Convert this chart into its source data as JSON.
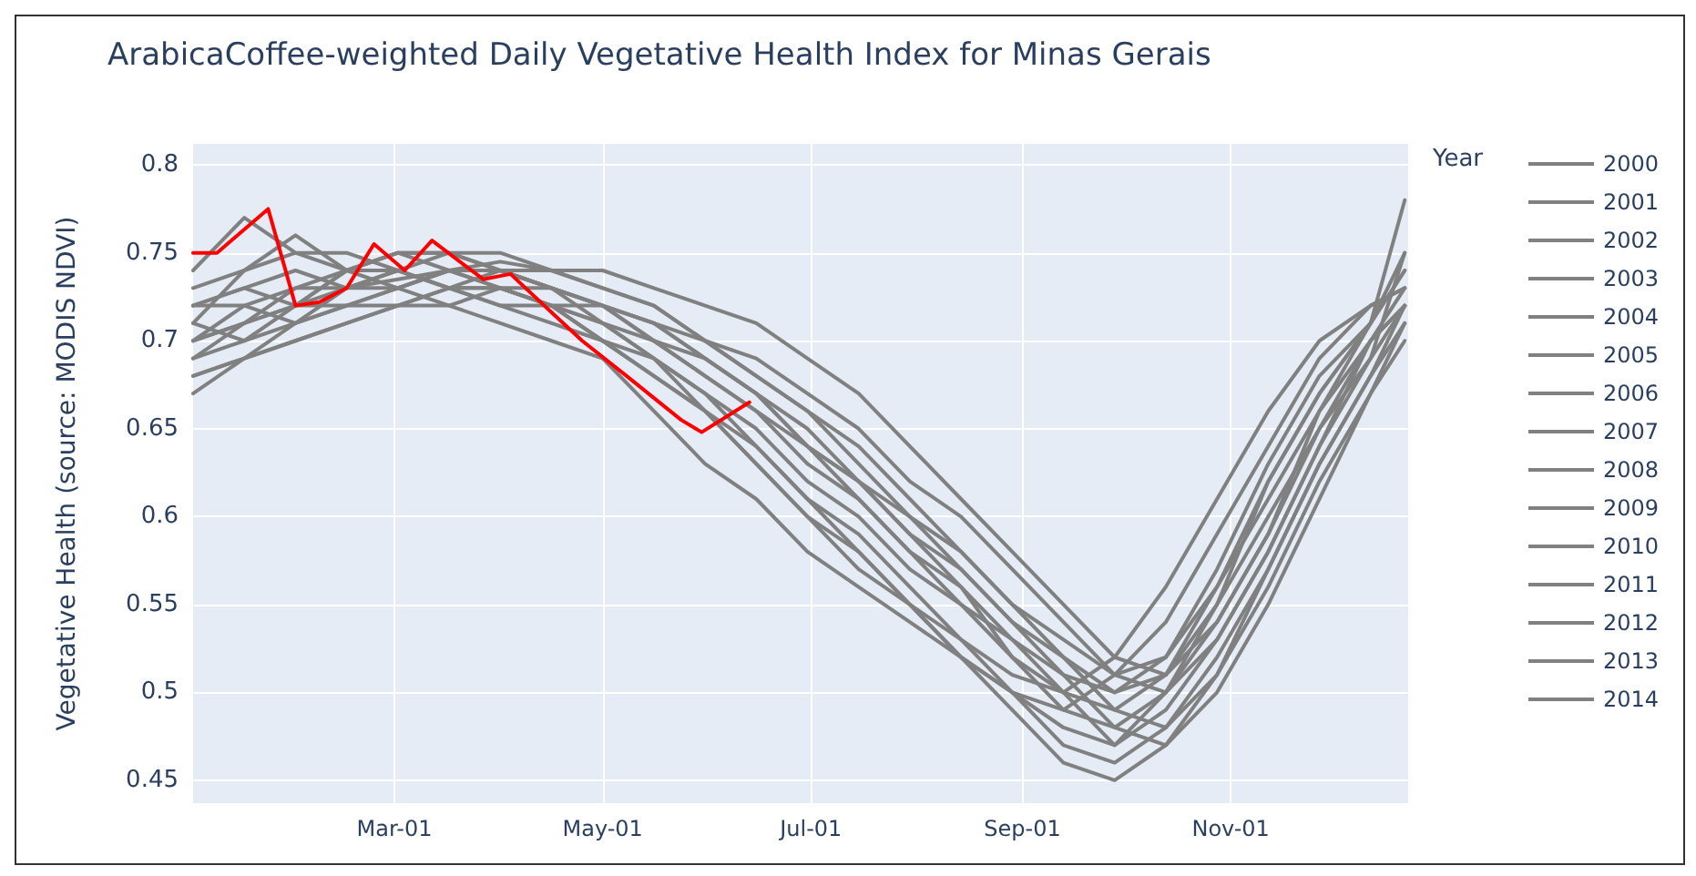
{
  "chart_data": {
    "type": "line",
    "title": "ArabicaCoffee-weighted Daily Vegetative Health Index for Minas Gerais",
    "ylabel": "Vegetative Health (source: MODIS NDVI)",
    "legend_title": "Year",
    "legend": "right",
    "grid": true,
    "marker": "none",
    "line_style": "solid",
    "x": [
      "--01-01",
      "--01-16",
      "--01-31",
      "--02-15",
      "--03-02",
      "--03-17",
      "--04-01",
      "--04-16",
      "--05-01",
      "--05-16",
      "--05-31",
      "--06-15",
      "--06-30",
      "--07-15",
      "--07-30",
      "--08-14",
      "--08-29",
      "--09-13",
      "--09-28",
      "--10-13",
      "--10-28",
      "--11-12",
      "--11-27",
      "--12-12",
      "--12-22"
    ],
    "xlim": [
      "--01-01",
      "--12-23"
    ],
    "xticks": [
      {
        "value": "--03-01",
        "label": "Mar-01"
      },
      {
        "value": "--05-01",
        "label": "May-01"
      },
      {
        "value": "--07-01",
        "label": "Jul-01"
      },
      {
        "value": "--09-01",
        "label": "Sep-01"
      },
      {
        "value": "--11-01",
        "label": "Nov-01"
      }
    ],
    "ylim": [
      0.437,
      0.812
    ],
    "yticks": [
      0.45,
      0.5,
      0.55,
      0.6,
      0.65,
      0.7,
      0.75,
      0.8
    ],
    "series": [
      {
        "name": "2000",
        "color": "#808080",
        "values": [
          0.7,
          0.71,
          0.72,
          0.73,
          0.74,
          0.73,
          0.73,
          0.72,
          0.71,
          0.69,
          0.67,
          0.65,
          0.62,
          0.6,
          0.57,
          0.55,
          0.53,
          0.51,
          0.5,
          0.52,
          0.57,
          0.63,
          0.68,
          0.71,
          0.74
        ]
      },
      {
        "name": "2001",
        "color": "#808080",
        "values": [
          0.74,
          0.77,
          0.75,
          0.75,
          0.74,
          0.73,
          0.74,
          0.73,
          0.72,
          0.71,
          0.7,
          0.68,
          0.66,
          0.64,
          0.61,
          0.58,
          0.55,
          0.52,
          0.5,
          0.51,
          0.55,
          0.6,
          0.65,
          0.7,
          0.73
        ]
      },
      {
        "name": "2002",
        "color": "#808080",
        "values": [
          0.69,
          0.7,
          0.71,
          0.72,
          0.73,
          0.74,
          0.74,
          0.73,
          0.72,
          0.7,
          0.68,
          0.66,
          0.64,
          0.61,
          0.58,
          0.56,
          0.52,
          0.49,
          0.48,
          0.5,
          0.54,
          0.59,
          0.65,
          0.69,
          0.72
        ]
      },
      {
        "name": "2003",
        "color": "#808080",
        "values": [
          0.72,
          0.73,
          0.74,
          0.73,
          0.735,
          0.74,
          0.745,
          0.74,
          0.73,
          0.72,
          0.7,
          0.69,
          0.67,
          0.65,
          0.62,
          0.6,
          0.57,
          0.54,
          0.51,
          0.5,
          0.53,
          0.58,
          0.64,
          0.69,
          0.75
        ]
      },
      {
        "name": "2004",
        "color": "#808080",
        "values": [
          0.68,
          0.69,
          0.71,
          0.72,
          0.72,
          0.73,
          0.72,
          0.71,
          0.7,
          0.68,
          0.66,
          0.63,
          0.6,
          0.57,
          0.55,
          0.53,
          0.51,
          0.5,
          0.52,
          0.56,
          0.61,
          0.66,
          0.7,
          0.72,
          0.73
        ]
      },
      {
        "name": "2005",
        "color": "#808080",
        "values": [
          0.71,
          0.7,
          0.72,
          0.74,
          0.75,
          0.74,
          0.73,
          0.73,
          0.72,
          0.71,
          0.69,
          0.67,
          0.64,
          0.62,
          0.59,
          0.56,
          0.53,
          0.5,
          0.47,
          0.49,
          0.53,
          0.58,
          0.64,
          0.7,
          0.72
        ]
      },
      {
        "name": "2006",
        "color": "#808080",
        "values": [
          0.67,
          0.69,
          0.7,
          0.71,
          0.72,
          0.72,
          0.73,
          0.72,
          0.7,
          0.69,
          0.67,
          0.64,
          0.61,
          0.58,
          0.55,
          0.52,
          0.5,
          0.48,
          0.47,
          0.5,
          0.55,
          0.62,
          0.67,
          0.71,
          0.74
        ]
      },
      {
        "name": "2007",
        "color": "#808080",
        "values": [
          0.73,
          0.74,
          0.75,
          0.74,
          0.74,
          0.75,
          0.75,
          0.74,
          0.74,
          0.73,
          0.72,
          0.71,
          0.69,
          0.67,
          0.64,
          0.61,
          0.58,
          0.55,
          0.52,
          0.51,
          0.54,
          0.59,
          0.66,
          0.71,
          0.78
        ]
      },
      {
        "name": "2008",
        "color": "#808080",
        "values": [
          0.7,
          0.72,
          0.71,
          0.73,
          0.73,
          0.72,
          0.71,
          0.7,
          0.69,
          0.66,
          0.63,
          0.61,
          0.58,
          0.56,
          0.54,
          0.52,
          0.5,
          0.49,
          0.51,
          0.54,
          0.59,
          0.64,
          0.69,
          0.72,
          0.73
        ]
      },
      {
        "name": "2009",
        "color": "#808080",
        "values": [
          0.72,
          0.73,
          0.72,
          0.74,
          0.75,
          0.75,
          0.74,
          0.73,
          0.71,
          0.7,
          0.68,
          0.66,
          0.63,
          0.61,
          0.58,
          0.55,
          0.52,
          0.5,
          0.49,
          0.51,
          0.56,
          0.61,
          0.66,
          0.7,
          0.72
        ]
      },
      {
        "name": "2010",
        "color": "#808080",
        "values": [
          0.69,
          0.71,
          0.73,
          0.73,
          0.74,
          0.73,
          0.72,
          0.72,
          0.71,
          0.69,
          0.66,
          0.64,
          0.61,
          0.59,
          0.56,
          0.53,
          0.5,
          0.47,
          0.46,
          0.48,
          0.52,
          0.57,
          0.63,
          0.68,
          0.71
        ]
      },
      {
        "name": "2011",
        "color": "#808080",
        "values": [
          0.71,
          0.74,
          0.76,
          0.74,
          0.73,
          0.74,
          0.73,
          0.72,
          0.72,
          0.7,
          0.69,
          0.67,
          0.65,
          0.62,
          0.6,
          0.57,
          0.54,
          0.52,
          0.49,
          0.48,
          0.51,
          0.56,
          0.62,
          0.67,
          0.7
        ]
      },
      {
        "name": "2012",
        "color": "#808080",
        "values": [
          0.7,
          0.71,
          0.72,
          0.72,
          0.73,
          0.74,
          0.74,
          0.73,
          0.72,
          0.71,
          0.69,
          0.67,
          0.64,
          0.62,
          0.59,
          0.57,
          0.54,
          0.51,
          0.48,
          0.47,
          0.5,
          0.55,
          0.61,
          0.67,
          0.71
        ]
      },
      {
        "name": "2013",
        "color": "#808080",
        "values": [
          0.72,
          0.72,
          0.73,
          0.74,
          0.75,
          0.75,
          0.74,
          0.74,
          0.73,
          0.72,
          0.7,
          0.68,
          0.66,
          0.63,
          0.6,
          0.58,
          0.55,
          0.53,
          0.51,
          0.52,
          0.56,
          0.62,
          0.67,
          0.71,
          0.75
        ]
      },
      {
        "name": "2014",
        "color": "#808080",
        "values": [
          0.68,
          0.69,
          0.7,
          0.71,
          0.72,
          0.73,
          0.73,
          0.72,
          0.7,
          0.68,
          0.66,
          0.63,
          0.6,
          0.58,
          0.55,
          0.52,
          0.49,
          0.46,
          0.45,
          0.47,
          0.51,
          0.57,
          0.63,
          0.68,
          0.72
        ]
      },
      {
        "color": "#ff0000",
        "x": [
          "--01-01",
          "--01-08",
          "--01-23",
          "--01-31",
          "--02-07",
          "--02-15",
          "--02-23",
          "--03-04",
          "--03-12",
          "--03-27",
          "--04-04",
          "--04-15",
          "--04-25",
          "--05-08",
          "--05-24",
          "--05-30",
          "--06-13"
        ],
        "values": [
          0.75,
          0.75,
          0.775,
          0.72,
          0.722,
          0.73,
          0.755,
          0.74,
          0.757,
          0.735,
          0.738,
          0.718,
          0.7,
          0.68,
          0.655,
          0.648,
          0.665
        ]
      }
    ]
  }
}
